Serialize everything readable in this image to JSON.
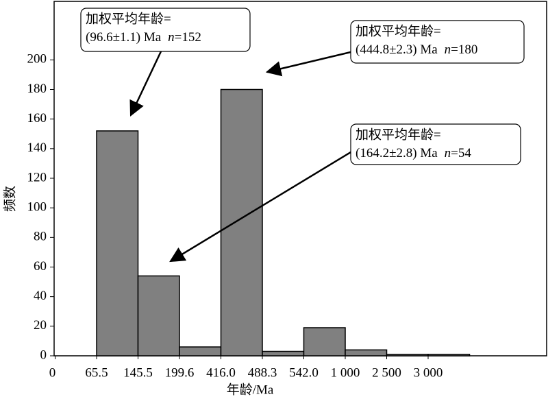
{
  "chart_data": {
    "type": "histogram",
    "bins": [
      0,
      65.5,
      145.5,
      199.6,
      {
        "value": 416.0,
        "label": "416.0"
      },
      488.3,
      {
        "value": 542.0,
        "label": "542.0"
      },
      {
        "value": 1000,
        "label": "1 000"
      },
      {
        "value": 2500,
        "label": "2 500"
      },
      {
        "value": 3000,
        "label": "3 000"
      },
      null
    ],
    "values": [
      null,
      152,
      54,
      6,
      180,
      3,
      19,
      4,
      1,
      1
    ],
    "color": "#808080",
    "ylim": [
      0,
      240
    ],
    "yticks": [
      0,
      20,
      40,
      60,
      80,
      100,
      120,
      140,
      160,
      180,
      200
    ],
    "xlabel": "年龄/Ma",
    "ylabel": "频数",
    "annotations": [
      {
        "lines": [
          "加权平均年龄=",
          "(96.6±1.1) Ma"
        ],
        "count_symbol": "n",
        "count_label": "=152"
      },
      {
        "lines": [
          "加权平均年龄=",
          "(444.8±2.3) Ma"
        ],
        "count_symbol": "n",
        "count_label": "=180"
      },
      {
        "lines": [
          "加权平均年龄=",
          "(164.2±2.8) Ma"
        ],
        "count_symbol": "n",
        "count_label": "=54"
      }
    ]
  }
}
